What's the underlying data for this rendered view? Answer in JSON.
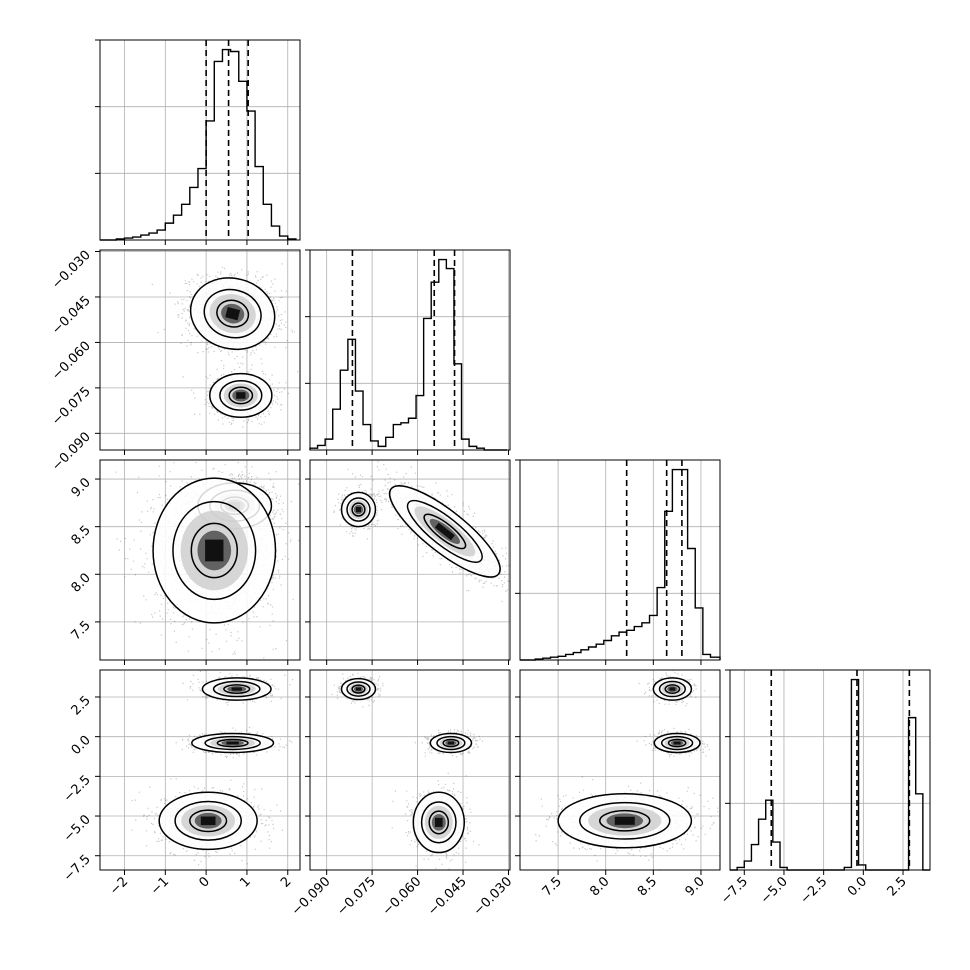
{
  "chart_data": {
    "type": "corner",
    "grid": true,
    "variables": [
      {
        "ticks": [
          -2,
          -1,
          0,
          1,
          2
        ],
        "tick_labels": [
          "−2",
          "−1",
          "0",
          "1",
          "2"
        ],
        "range": [
          -2.6,
          2.3
        ],
        "quantiles": [
          0.0,
          0.55,
          1.03
        ],
        "hist": {
          "edges": [
            -2.6,
            -2.4,
            -2.2,
            -2.0,
            -1.8,
            -1.6,
            -1.4,
            -1.2,
            -1.0,
            -0.8,
            -0.6,
            -0.4,
            -0.2,
            0.0,
            0.2,
            0.4,
            0.6,
            0.8,
            1.0,
            1.2,
            1.4,
            1.6,
            1.8,
            2.0,
            2.2
          ],
          "counts": [
            0,
            0,
            1,
            2,
            3,
            5,
            7,
            10,
            17,
            25,
            36,
            53,
            72,
            120,
            180,
            192,
            190,
            160,
            130,
            74,
            36,
            14,
            4,
            1
          ]
        }
      },
      {
        "ticks": [
          -0.09,
          -0.075,
          -0.06,
          -0.045,
          -0.03
        ],
        "tick_labels": [
          "−0.090",
          "−0.075",
          "−0.060",
          "−0.045",
          "−0.030"
        ],
        "range": [
          -0.0955,
          -0.0295
        ],
        "quantiles": [
          -0.0815,
          -0.0545,
          -0.0478
        ],
        "hist": {
          "edges": [
            -0.0955,
            -0.093,
            -0.0905,
            -0.088,
            -0.0855,
            -0.083,
            -0.0805,
            -0.078,
            -0.0755,
            -0.073,
            -0.0705,
            -0.068,
            -0.0655,
            -0.063,
            -0.0605,
            -0.058,
            -0.0555,
            -0.053,
            -0.0505,
            -0.048,
            -0.0455,
            -0.043,
            -0.0405,
            -0.038,
            -0.0355,
            -0.033,
            -0.0305
          ],
          "counts": [
            2,
            5,
            12,
            45,
            88,
            122,
            65,
            28,
            10,
            4,
            14,
            28,
            30,
            35,
            60,
            145,
            185,
            210,
            200,
            95,
            12,
            4,
            2,
            0,
            0,
            0
          ]
        }
      },
      {
        "ticks": [
          7.5,
          8.0,
          8.5,
          9.0
        ],
        "tick_labels": [
          "7.5",
          "8.0",
          "8.5",
          "9.0"
        ],
        "range": [
          7.1,
          9.2
        ],
        "quantiles": [
          8.22,
          8.64,
          8.8
        ],
        "hist": {
          "edges": [
            7.1,
            7.18,
            7.26,
            7.34,
            7.42,
            7.5,
            7.58,
            7.66,
            7.74,
            7.82,
            7.9,
            7.98,
            8.06,
            8.14,
            8.22,
            8.3,
            8.38,
            8.46,
            8.54,
            8.62,
            8.7,
            8.78,
            8.86,
            8.94,
            9.02,
            9.1,
            9.2
          ],
          "counts": [
            0,
            0,
            1,
            2,
            3,
            4,
            6,
            8,
            11,
            14,
            17,
            21,
            26,
            30,
            32,
            36,
            40,
            48,
            78,
            160,
            205,
            205,
            120,
            56,
            6,
            3
          ]
        }
      },
      {
        "ticks": [
          -7.5,
          -5.0,
          -2.5,
          0.0,
          2.5
        ],
        "tick_labels": [
          "−7.5",
          "−5.0",
          "−2.5",
          "0.0",
          "2.5"
        ],
        "range": [
          -8.4,
          4.2
        ],
        "quantiles": [
          -5.8,
          -0.4,
          2.9
        ],
        "hist": {
          "edges": [
            -8.4,
            -7.95,
            -7.5,
            -7.05,
            -6.6,
            -6.15,
            -5.7,
            -5.25,
            -4.8,
            -4.35,
            -3.9,
            -3.45,
            -3.0,
            -2.55,
            -2.1,
            -1.65,
            -1.2,
            -0.75,
            -0.3,
            0.15,
            0.6,
            1.05,
            1.5,
            1.95,
            2.4,
            2.85,
            3.3,
            3.75,
            4.2
          ],
          "counts": [
            0,
            2,
            7,
            20,
            40,
            55,
            22,
            2,
            0,
            0,
            0,
            0,
            0,
            0,
            0,
            0,
            2,
            150,
            4,
            0,
            0,
            0,
            0,
            0,
            0,
            120,
            60,
            0
          ]
        }
      }
    ],
    "pairs": [
      {
        "row": 1,
        "col": 0,
        "blobs": [
          {
            "cx": 0.65,
            "cy": -0.0505,
            "sx": 0.52,
            "sy": 0.0058,
            "n": 1700,
            "rot": -0.25
          },
          {
            "cx": 0.85,
            "cy": -0.0775,
            "sx": 0.38,
            "sy": 0.0036,
            "n": 800,
            "rot": 0.0
          }
        ]
      },
      {
        "row": 2,
        "col": 0,
        "blobs": [
          {
            "cx": 0.7,
            "cy": 8.72,
            "sx": 0.45,
            "sy": 0.12,
            "n": 1300,
            "rot": 0.0
          },
          {
            "cx": 0.2,
            "cy": 8.25,
            "sx": 0.75,
            "sy": 0.38,
            "n": 1500,
            "rot": 0.0
          }
        ]
      },
      {
        "row": 2,
        "col": 1,
        "blobs": [
          {
            "cx": -0.0795,
            "cy": 8.68,
            "sx": 0.0028,
            "sy": 0.09,
            "n": 900,
            "rot": 0.0
          },
          {
            "cx": -0.051,
            "cy": 8.45,
            "sx": 0.0034,
            "sy": 0.36,
            "n": 1700,
            "rot": 0.9
          }
        ]
      },
      {
        "row": 3,
        "col": 0,
        "blobs": [
          {
            "cx": 0.75,
            "cy": 3.0,
            "sx": 0.42,
            "sy": 0.35,
            "n": 650,
            "rot": 0.0
          },
          {
            "cx": 0.65,
            "cy": -0.4,
            "sx": 0.5,
            "sy": 0.3,
            "n": 700,
            "rot": 0.0
          },
          {
            "cx": 0.05,
            "cy": -5.3,
            "sx": 0.6,
            "sy": 0.9,
            "n": 1000,
            "rot": 0.0
          }
        ]
      },
      {
        "row": 3,
        "col": 1,
        "blobs": [
          {
            "cx": -0.0795,
            "cy": 3.0,
            "sx": 0.0028,
            "sy": 0.33,
            "n": 650,
            "rot": 0.0
          },
          {
            "cx": -0.049,
            "cy": -0.4,
            "sx": 0.0034,
            "sy": 0.3,
            "n": 700,
            "rot": 0.0
          },
          {
            "cx": -0.053,
            "cy": -5.4,
            "sx": 0.0042,
            "sy": 0.95,
            "n": 1000,
            "rot": 0.0
          }
        ]
      },
      {
        "row": 3,
        "col": 2,
        "blobs": [
          {
            "cx": 8.7,
            "cy": 3.0,
            "sx": 0.1,
            "sy": 0.35,
            "n": 650,
            "rot": 0.0
          },
          {
            "cx": 8.75,
            "cy": -0.4,
            "sx": 0.12,
            "sy": 0.3,
            "n": 700,
            "rot": 0.0
          },
          {
            "cx": 8.2,
            "cy": -5.3,
            "sx": 0.35,
            "sy": 0.85,
            "n": 1100,
            "rot": 0.0
          }
        ]
      }
    ],
    "contour_levels_sigma": [
      0.5,
      1.0,
      1.5
    ]
  }
}
